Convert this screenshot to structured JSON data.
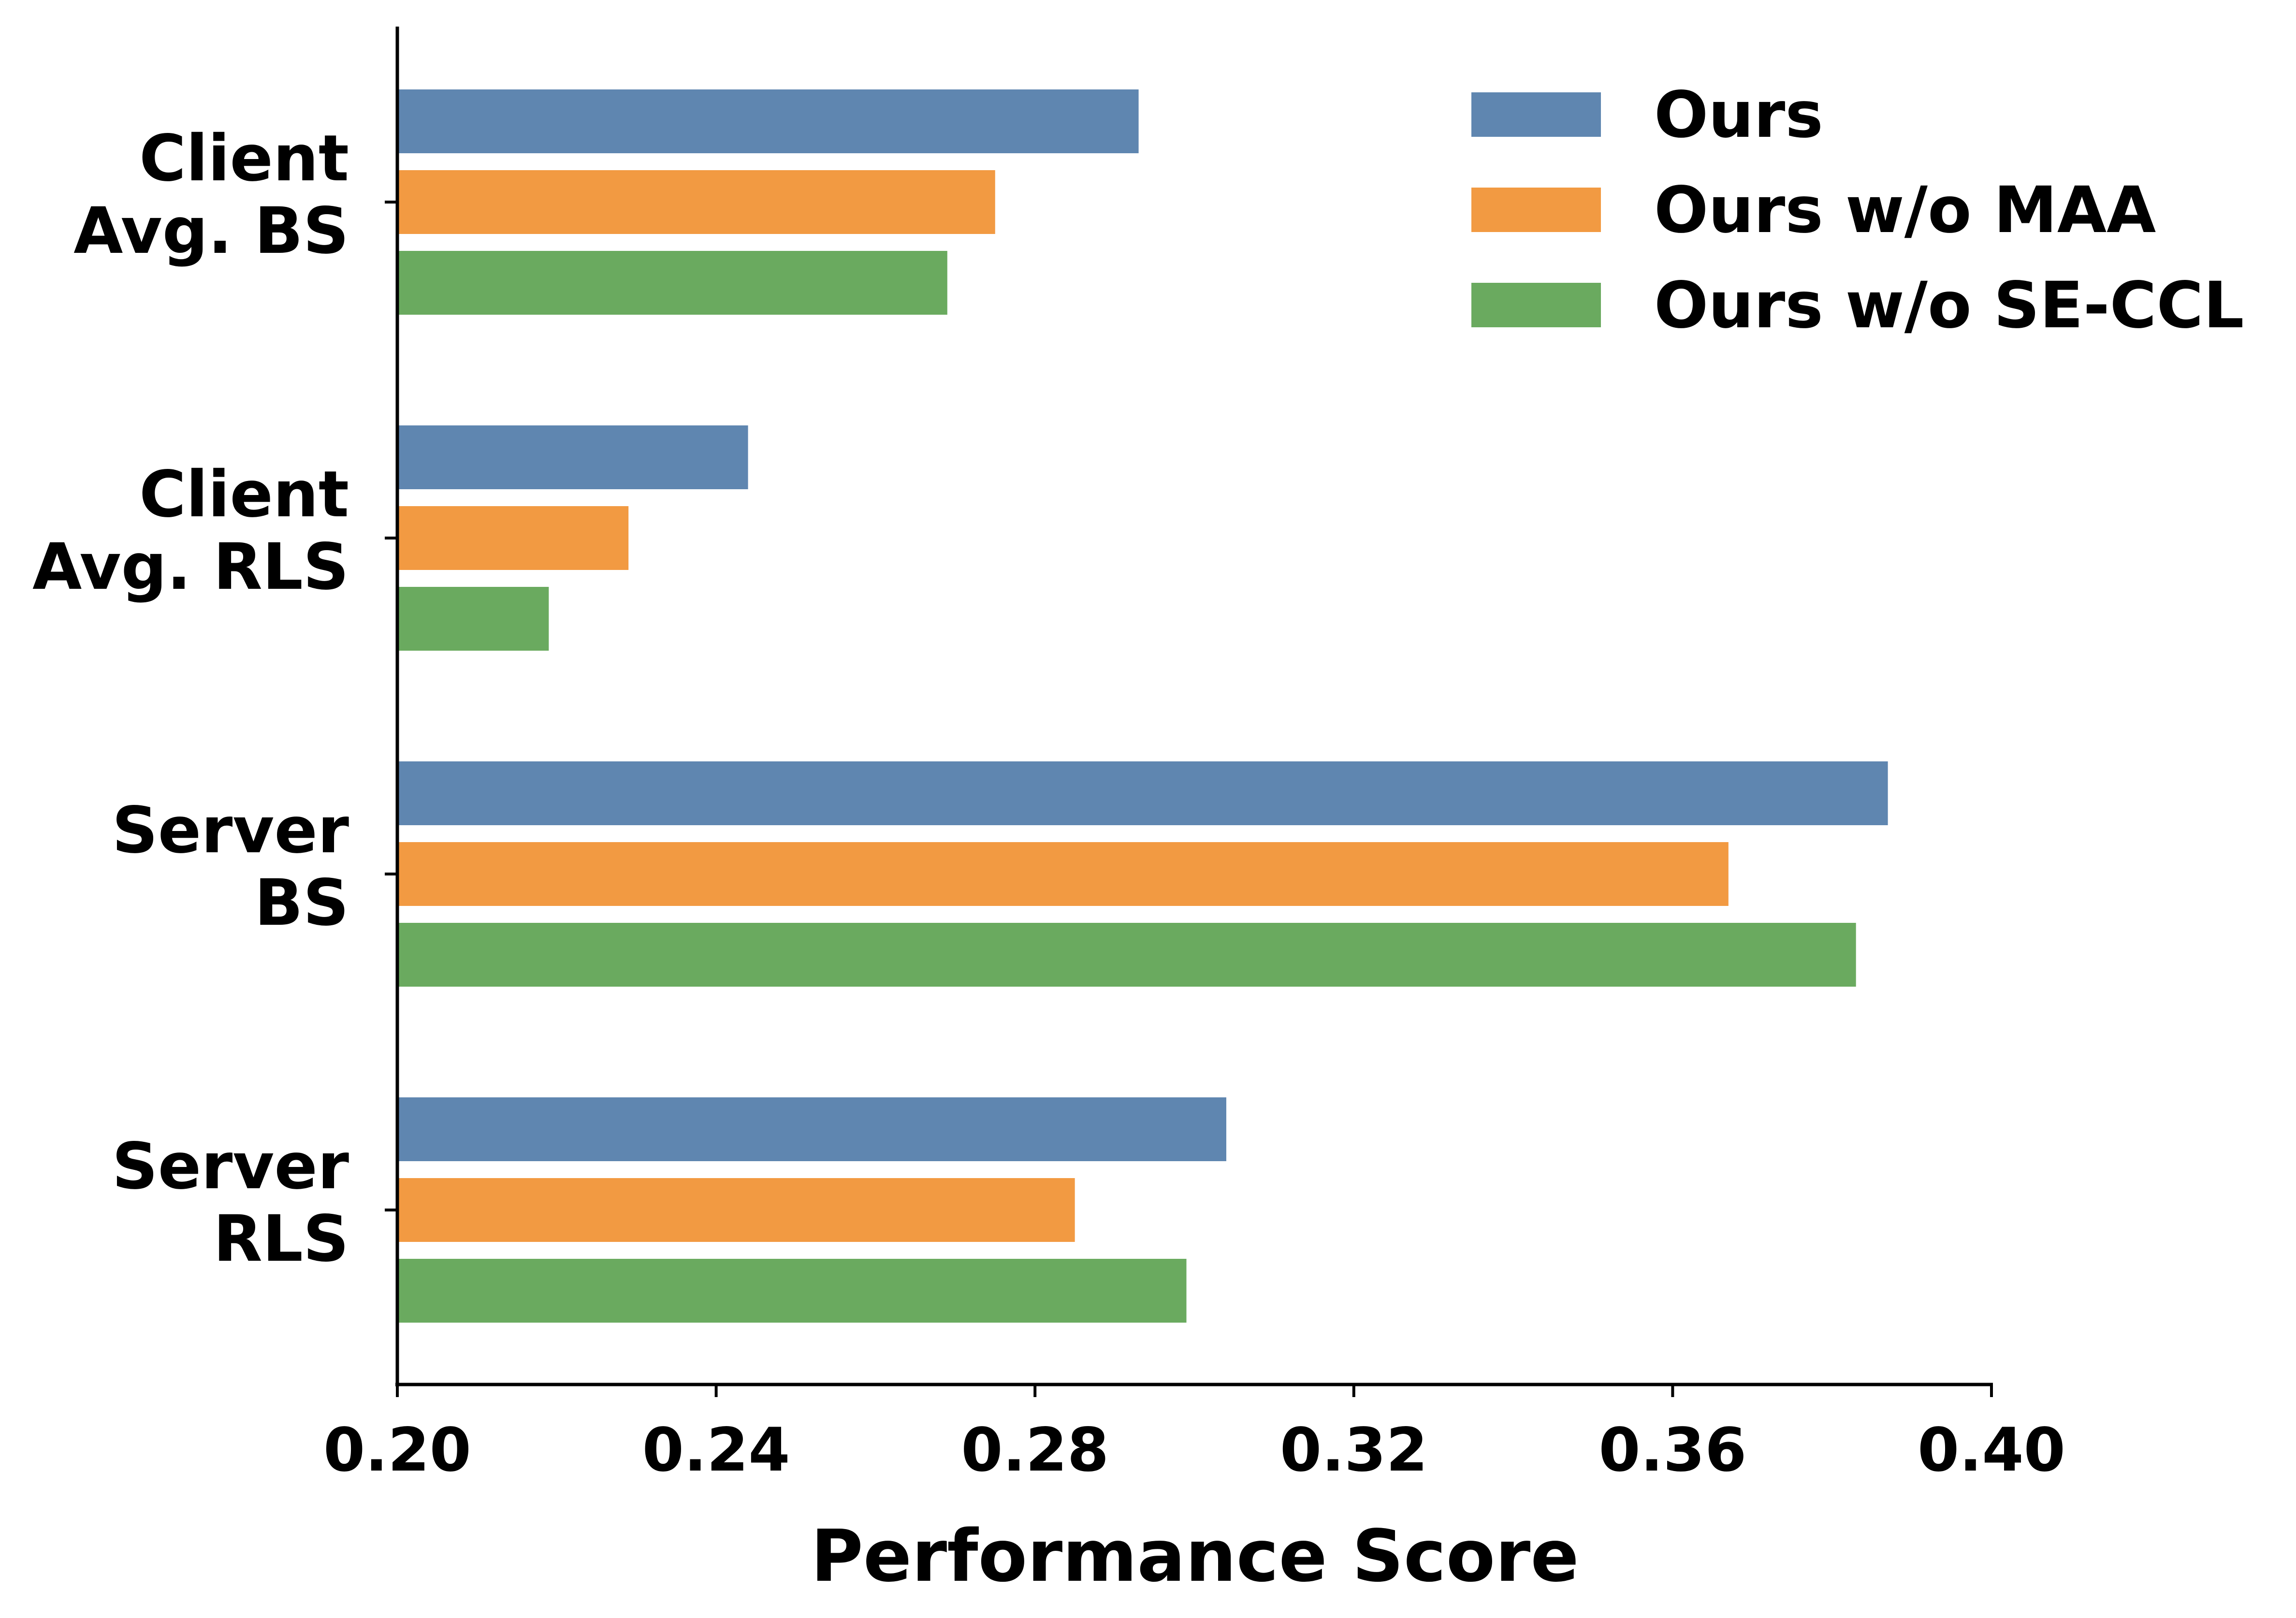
{
  "chart_data": {
    "type": "bar",
    "orientation": "horizontal",
    "categories": [
      [
        "Client",
        "Avg. BS"
      ],
      [
        "Client",
        "Avg. RLS"
      ],
      [
        "Server",
        "BS"
      ],
      [
        "Server",
        "RLS"
      ]
    ],
    "series": [
      {
        "name": "Ours",
        "color": "#5F86B0",
        "values": [
          0.293,
          0.244,
          0.387,
          0.304
        ]
      },
      {
        "name": "Ours w/o MAA",
        "color": "#F29A42",
        "values": [
          0.275,
          0.229,
          0.367,
          0.285
        ]
      },
      {
        "name": "Ours w/o SE-CCL",
        "color": "#6AAA5F",
        "values": [
          0.269,
          0.219,
          0.383,
          0.299
        ]
      }
    ],
    "xlabel": "Performance Score",
    "ylabel": "",
    "title": "",
    "xlim": [
      0.2,
      0.4
    ],
    "xticks": [
      "0.20",
      "0.24",
      "0.28",
      "0.32",
      "0.36",
      "0.40"
    ],
    "grid": false,
    "legend_position": "top-right"
  }
}
